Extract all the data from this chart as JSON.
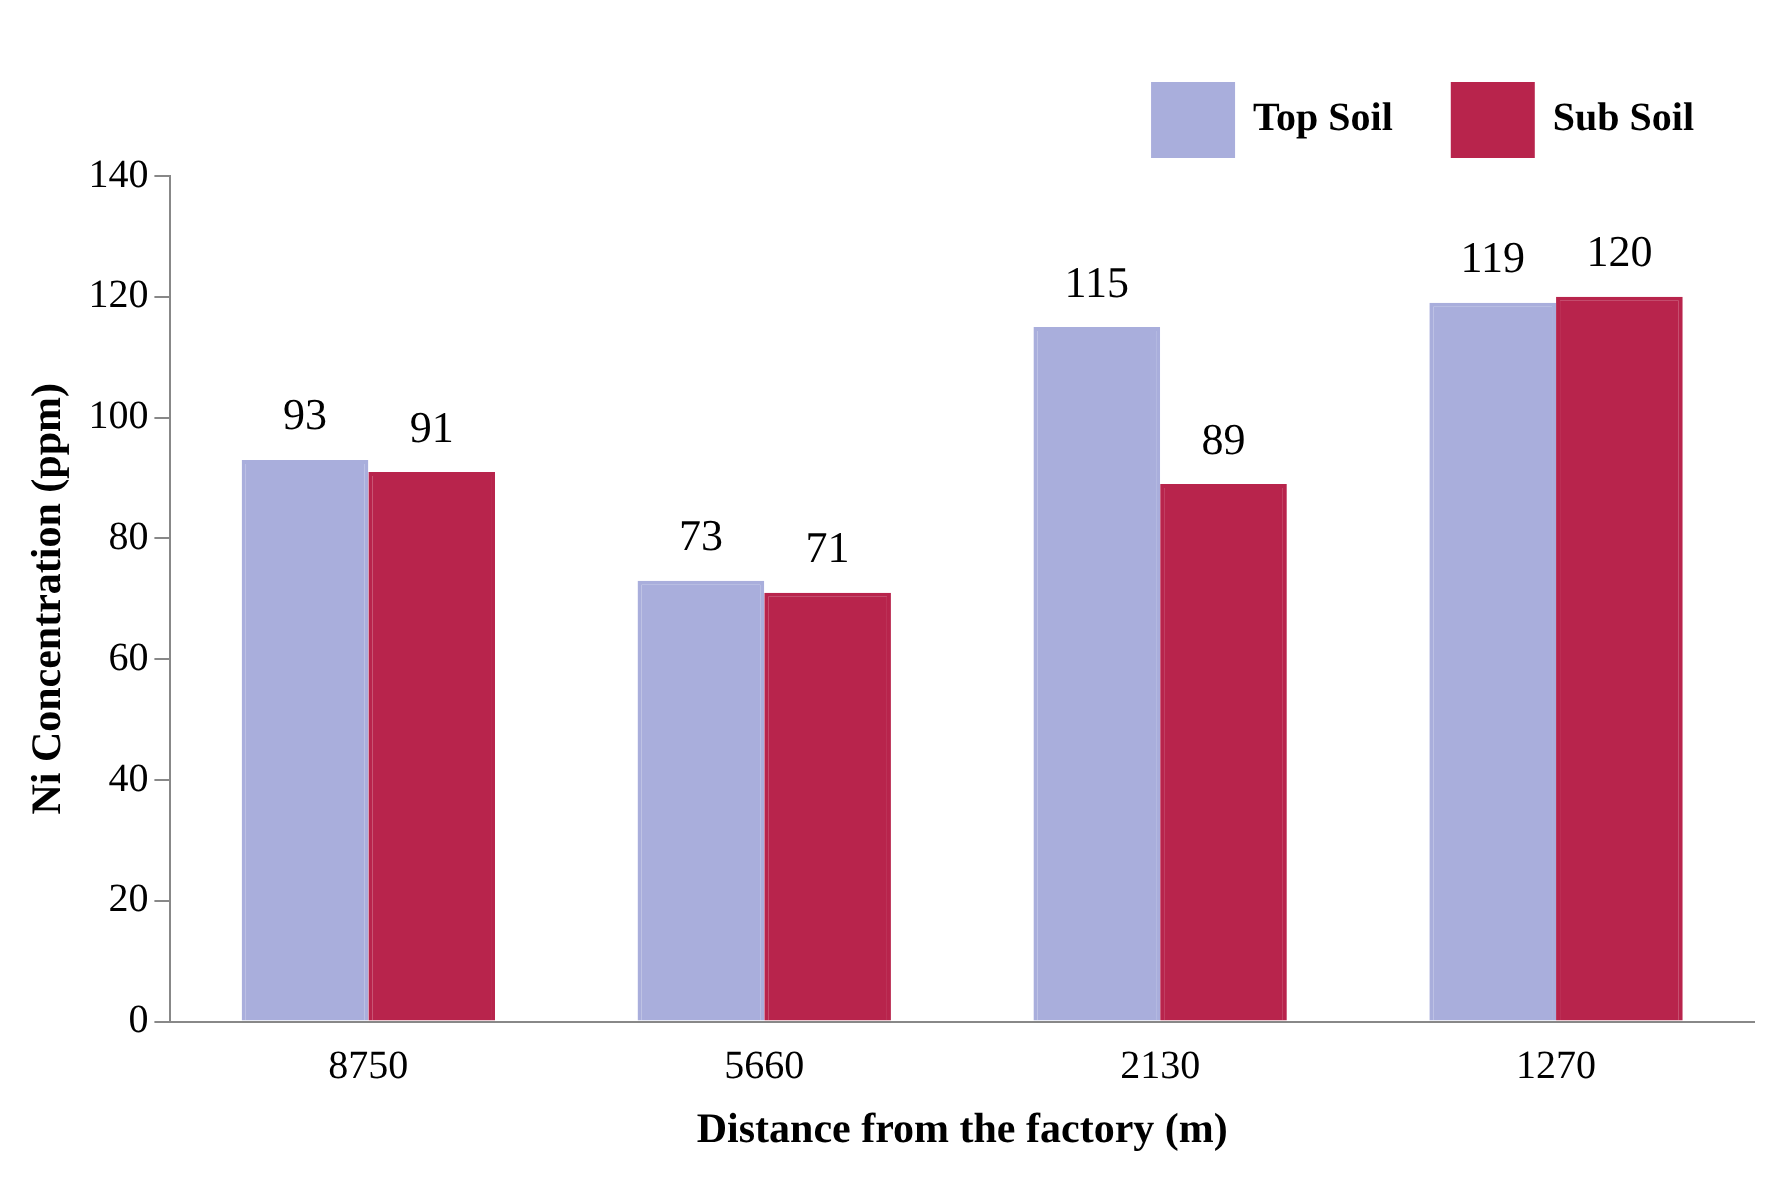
{
  "chart_data": {
    "type": "bar",
    "xlabel": "Distance from the factory (m)",
    "ylabel": "Ni Concentration (ppm)",
    "categories": [
      "8750",
      "5660",
      "2130",
      "1270"
    ],
    "series": [
      {
        "name": "Top Soil",
        "color": "#a9aedc",
        "values": [
          93,
          73,
          115,
          119
        ]
      },
      {
        "name": "Sub Soil",
        "color": "#b8244c",
        "values": [
          91,
          71,
          89,
          120
        ]
      }
    ],
    "ylim": [
      0,
      140
    ],
    "yticks": [
      0,
      20,
      40,
      60,
      80,
      100,
      120,
      140
    ],
    "grid": false,
    "legend": "top right",
    "data_labels": true
  }
}
